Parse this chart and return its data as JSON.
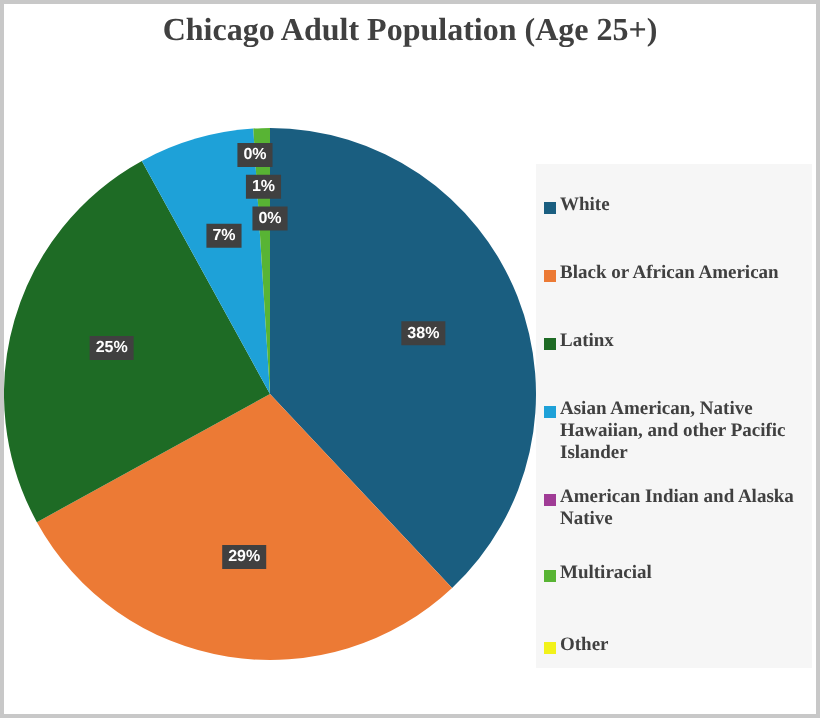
{
  "chart_data": {
    "type": "pie",
    "title": "Chicago Adult Population (Age 25+)",
    "categories": [
      "White",
      "Black or African American",
      "Latinx",
      "Asian American, Native Hawaiian, and other Pacific Islander",
      "American Indian and Alaska Native",
      "Multiracial",
      "Other"
    ],
    "values": [
      38,
      29,
      25,
      7,
      0,
      1,
      0
    ],
    "colors": [
      "#1a5e80",
      "#ec7a35",
      "#1e6b25",
      "#1ea1d8",
      "#a03c96",
      "#58b434",
      "#f2f21a"
    ],
    "value_labels": [
      "38%",
      "29%",
      "25%",
      "7%",
      "0%",
      "1%",
      "0%"
    ],
    "legend": "right"
  }
}
